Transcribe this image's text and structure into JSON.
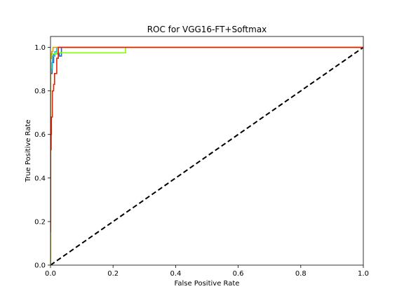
{
  "chart_data": {
    "type": "line",
    "title": "ROC for VGG16-FT+Softmax",
    "xlabel": "False Positive Rate",
    "ylabel": "True Positive Rate",
    "xlim": [
      0.0,
      1.0
    ],
    "ylim": [
      0.0,
      1.05
    ],
    "xticks": [
      0.0,
      0.2,
      0.4,
      0.6,
      0.8,
      1.0
    ],
    "xtick_labels": [
      "0.0",
      "0.2",
      "0.4",
      "0.6",
      "0.8",
      "1.0"
    ],
    "yticks": [
      0.0,
      0.2,
      0.4,
      0.6,
      0.8,
      1.0
    ],
    "ytick_labels": [
      "0.0",
      "0.2",
      "0.4",
      "0.6",
      "0.8",
      "1.0"
    ],
    "grid": false,
    "legend": "none",
    "series": [
      {
        "color": "#1f5fd6",
        "points": [
          [
            0.0,
            0.0
          ],
          [
            0.0,
            0.88
          ],
          [
            0.005,
            0.88
          ],
          [
            0.005,
            0.93
          ],
          [
            0.01,
            0.93
          ],
          [
            0.01,
            0.97
          ],
          [
            0.028,
            0.97
          ],
          [
            0.028,
            0.96
          ],
          [
            0.035,
            0.96
          ],
          [
            0.035,
            1.0
          ],
          [
            1.0,
            1.0
          ]
        ]
      },
      {
        "color": "#00c8e0",
        "points": [
          [
            0.0,
            0.0
          ],
          [
            0.0,
            0.9
          ],
          [
            0.006,
            0.9
          ],
          [
            0.006,
            0.96
          ],
          [
            0.014,
            0.96
          ],
          [
            0.014,
            0.98
          ],
          [
            0.02,
            0.98
          ],
          [
            0.02,
            1.0
          ],
          [
            1.0,
            1.0
          ]
        ]
      },
      {
        "color": "#80ff00",
        "points": [
          [
            0.0,
            0.0
          ],
          [
            0.0,
            0.97
          ],
          [
            0.02,
            0.97
          ],
          [
            0.02,
            0.975
          ],
          [
            0.24,
            0.975
          ],
          [
            0.24,
            1.0
          ],
          [
            1.0,
            1.0
          ]
        ]
      },
      {
        "color": "#e8a000",
        "points": [
          [
            0.0,
            0.0
          ],
          [
            0.0,
            0.95
          ],
          [
            0.004,
            0.95
          ],
          [
            0.004,
            0.98
          ],
          [
            0.008,
            0.98
          ],
          [
            0.008,
            1.0
          ],
          [
            1.0,
            1.0
          ]
        ]
      },
      {
        "color": "#e82000",
        "points": [
          [
            0.0,
            0.15
          ],
          [
            0.0,
            0.53
          ],
          [
            0.002,
            0.53
          ],
          [
            0.002,
            0.6
          ],
          [
            0.003,
            0.6
          ],
          [
            0.003,
            0.68
          ],
          [
            0.006,
            0.68
          ],
          [
            0.006,
            0.8
          ],
          [
            0.01,
            0.8
          ],
          [
            0.01,
            0.83
          ],
          [
            0.013,
            0.83
          ],
          [
            0.013,
            0.88
          ],
          [
            0.02,
            0.88
          ],
          [
            0.02,
            0.95
          ],
          [
            0.025,
            0.95
          ],
          [
            0.025,
            1.0
          ],
          [
            1.0,
            1.0
          ]
        ]
      }
    ],
    "reference_line": {
      "points": [
        [
          0.0,
          0.0
        ],
        [
          1.0,
          1.0
        ]
      ],
      "color": "#000000",
      "style": "dashed"
    }
  }
}
